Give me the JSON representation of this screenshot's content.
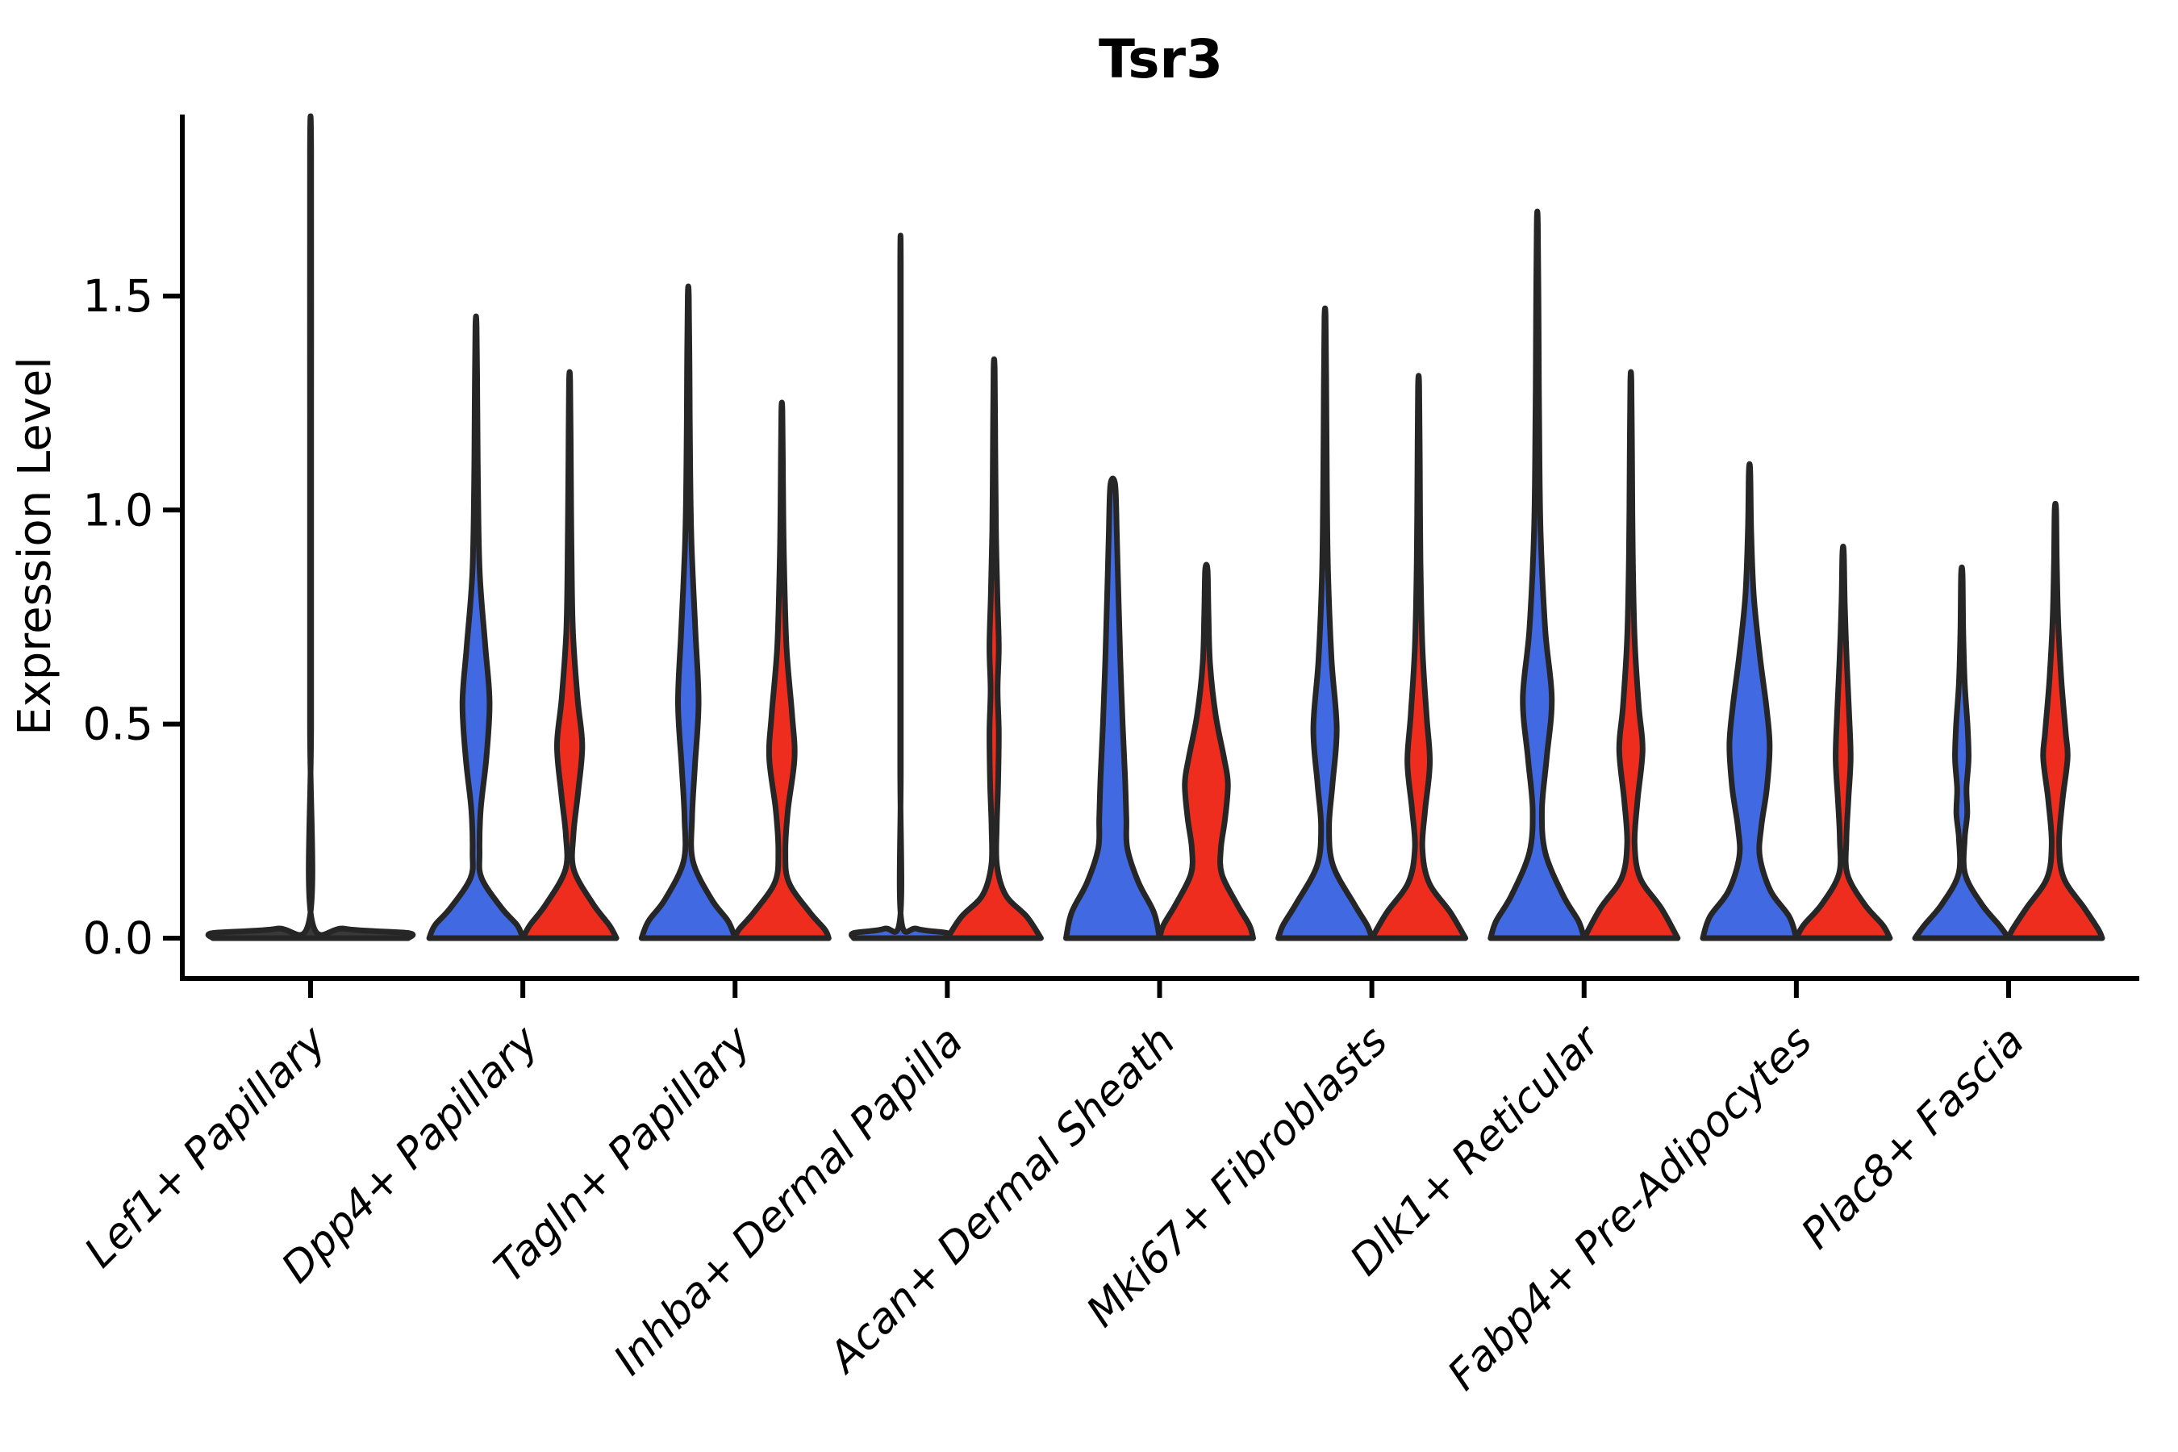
{
  "chart_data": {
    "type": "violin",
    "title": "Tsr3",
    "ylabel": "Expression Level",
    "xlabel": "",
    "ylim": [
      -0.07,
      1.95
    ],
    "yticks": [
      0.0,
      0.5,
      1.0,
      1.5
    ],
    "ytick_labels": [
      "0.0",
      "0.5",
      "1.0",
      "1.5"
    ],
    "grid": false,
    "legend": "none",
    "edge_color": "#262626",
    "group_colors": {
      "blue": "#4169e1",
      "red": "#ee2d1e",
      "single": "#3a3a3a"
    },
    "categories": [
      "Lef1+ Papillary",
      "Dpp4+ Papillary",
      "Tagln+ Papillary",
      "Inhba+ Dermal Papilla",
      "Acan+ Dermal Sheath",
      "Mki67+ Fibroblasts",
      "Dlk1+ Reticular",
      "Fabp4+ Pre-Adipocytes",
      "Plac8+ Fascia"
    ],
    "violins": [
      {
        "category": "Lef1+ Papillary",
        "layout": "single",
        "items": [
          {
            "group": "single",
            "max_expression": 1.84,
            "profile": [
              [
                1.84,
                0.006
              ],
              [
                1.2,
                0.006
              ],
              [
                0.5,
                0.006
              ],
              [
                0.05,
                0.007
              ],
              [
                0.022,
                0.35
              ],
              [
                0.012,
                1.0
              ],
              [
                0,
                1.0
              ]
            ]
          }
        ]
      },
      {
        "category": "Dpp4+ Papillary",
        "layout": "pair",
        "items": [
          {
            "group": "blue",
            "max_expression": 1.43,
            "profile": [
              [
                1.43,
                0.012
              ],
              [
                1.25,
                0.028
              ],
              [
                1.05,
                0.042
              ],
              [
                0.85,
                0.08
              ],
              [
                0.68,
                0.2
              ],
              [
                0.55,
                0.29
              ],
              [
                0.42,
                0.22
              ],
              [
                0.3,
                0.1
              ],
              [
                0.2,
                0.075
              ],
              [
                0.14,
                0.12
              ],
              [
                0.07,
                0.55
              ],
              [
                0.03,
                0.88
              ],
              [
                0,
                1.0
              ]
            ]
          },
          {
            "group": "red",
            "max_expression": 1.3,
            "profile": [
              [
                1.3,
                0.012
              ],
              [
                1.12,
                0.025
              ],
              [
                0.92,
                0.04
              ],
              [
                0.72,
                0.07
              ],
              [
                0.56,
                0.17
              ],
              [
                0.45,
                0.27
              ],
              [
                0.34,
                0.18
              ],
              [
                0.24,
                0.08
              ],
              [
                0.16,
                0.09
              ],
              [
                0.08,
                0.5
              ],
              [
                0.03,
                0.85
              ],
              [
                0,
                1.0
              ]
            ]
          }
        ]
      },
      {
        "category": "Tagln+ Papillary",
        "layout": "pair",
        "items": [
          {
            "group": "blue",
            "max_expression": 1.5,
            "profile": [
              [
                1.5,
                0.012
              ],
              [
                1.32,
                0.026
              ],
              [
                1.1,
                0.04
              ],
              [
                0.92,
                0.07
              ],
              [
                0.72,
                0.15
              ],
              [
                0.55,
                0.22
              ],
              [
                0.4,
                0.14
              ],
              [
                0.28,
                0.08
              ],
              [
                0.18,
                0.1
              ],
              [
                0.09,
                0.5
              ],
              [
                0.04,
                0.85
              ],
              [
                0,
                1.0
              ]
            ]
          },
          {
            "group": "red",
            "max_expression": 1.23,
            "profile": [
              [
                1.23,
                0.012
              ],
              [
                1.06,
                0.025
              ],
              [
                0.88,
                0.045
              ],
              [
                0.68,
                0.1
              ],
              [
                0.52,
                0.22
              ],
              [
                0.42,
                0.27
              ],
              [
                0.3,
                0.13
              ],
              [
                0.2,
                0.075
              ],
              [
                0.13,
                0.15
              ],
              [
                0.06,
                0.6
              ],
              [
                0.02,
                0.92
              ],
              [
                0,
                1.0
              ]
            ]
          }
        ]
      },
      {
        "category": "Inhba+ Dermal Papilla",
        "layout": "pair",
        "items": [
          {
            "group": "blue",
            "max_expression": 1.57,
            "profile": [
              [
                1.57,
                0.006
              ],
              [
                1.0,
                0.006
              ],
              [
                0.4,
                0.006
              ],
              [
                0.05,
                0.007
              ],
              [
                0.022,
                0.35
              ],
              [
                0.012,
                1.0
              ],
              [
                0,
                1.0
              ]
            ]
          },
          {
            "group": "red",
            "max_expression": 1.33,
            "profile": [
              [
                1.33,
                0.012
              ],
              [
                1.15,
                0.025
              ],
              [
                0.95,
                0.04
              ],
              [
                0.8,
                0.07
              ],
              [
                0.68,
                0.1
              ],
              [
                0.58,
                0.075
              ],
              [
                0.48,
                0.1
              ],
              [
                0.36,
                0.085
              ],
              [
                0.26,
                0.055
              ],
              [
                0.17,
                0.06
              ],
              [
                0.1,
                0.25
              ],
              [
                0.05,
                0.7
              ],
              [
                0,
                1.0
              ]
            ]
          }
        ]
      },
      {
        "category": "Acan+ Dermal Sheath",
        "layout": "pair",
        "items": [
          {
            "group": "blue",
            "max_expression": 1.06,
            "profile": [
              [
                1.06,
                0.05
              ],
              [
                0.95,
                0.085
              ],
              [
                0.8,
                0.12
              ],
              [
                0.65,
                0.16
              ],
              [
                0.5,
                0.21
              ],
              [
                0.38,
                0.26
              ],
              [
                0.28,
                0.29
              ],
              [
                0.21,
                0.31
              ],
              [
                0.13,
                0.55
              ],
              [
                0.06,
                0.88
              ],
              [
                0,
                1.0
              ]
            ]
          },
          {
            "group": "red",
            "max_expression": 0.86,
            "profile": [
              [
                0.86,
                0.025
              ],
              [
                0.76,
                0.045
              ],
              [
                0.64,
                0.08
              ],
              [
                0.52,
                0.2
              ],
              [
                0.42,
                0.38
              ],
              [
                0.36,
                0.46
              ],
              [
                0.28,
                0.4
              ],
              [
                0.21,
                0.31
              ],
              [
                0.15,
                0.33
              ],
              [
                0.08,
                0.65
              ],
              [
                0.03,
                0.92
              ],
              [
                0,
                1.0
              ]
            ]
          }
        ]
      },
      {
        "category": "Mki67+ Fibroblasts",
        "layout": "pair",
        "items": [
          {
            "group": "blue",
            "max_expression": 1.45,
            "profile": [
              [
                1.45,
                0.012
              ],
              [
                1.28,
                0.026
              ],
              [
                1.05,
                0.04
              ],
              [
                0.85,
                0.065
              ],
              [
                0.65,
                0.14
              ],
              [
                0.49,
                0.25
              ],
              [
                0.36,
                0.16
              ],
              [
                0.26,
                0.085
              ],
              [
                0.17,
                0.17
              ],
              [
                0.08,
                0.62
              ],
              [
                0.03,
                0.9
              ],
              [
                0,
                1.0
              ]
            ]
          },
          {
            "group": "red",
            "max_expression": 1.29,
            "profile": [
              [
                1.29,
                0.012
              ],
              [
                1.1,
                0.025
              ],
              [
                0.88,
                0.04
              ],
              [
                0.68,
                0.08
              ],
              [
                0.52,
                0.17
              ],
              [
                0.41,
                0.24
              ],
              [
                0.3,
                0.14
              ],
              [
                0.21,
                0.08
              ],
              [
                0.13,
                0.22
              ],
              [
                0.06,
                0.68
              ],
              [
                0,
                1.0
              ]
            ]
          }
        ]
      },
      {
        "category": "Dlk1+ Reticular",
        "layout": "pair",
        "items": [
          {
            "group": "blue",
            "max_expression": 1.67,
            "profile": [
              [
                1.67,
                0.012
              ],
              [
                1.45,
                0.026
              ],
              [
                1.2,
                0.04
              ],
              [
                0.95,
                0.07
              ],
              [
                0.72,
                0.17
              ],
              [
                0.56,
                0.31
              ],
              [
                0.42,
                0.2
              ],
              [
                0.3,
                0.1
              ],
              [
                0.2,
                0.17
              ],
              [
                0.1,
                0.55
              ],
              [
                0.04,
                0.88
              ],
              [
                0,
                1.0
              ]
            ]
          },
          {
            "group": "red",
            "max_expression": 1.3,
            "profile": [
              [
                1.3,
                0.012
              ],
              [
                1.12,
                0.025
              ],
              [
                0.9,
                0.04
              ],
              [
                0.7,
                0.08
              ],
              [
                0.54,
                0.17
              ],
              [
                0.44,
                0.25
              ],
              [
                0.32,
                0.14
              ],
              [
                0.22,
                0.08
              ],
              [
                0.14,
                0.2
              ],
              [
                0.07,
                0.65
              ],
              [
                0,
                1.0
              ]
            ]
          }
        ]
      },
      {
        "category": "Fabp4+ Pre-Adipocytes",
        "layout": "pair",
        "items": [
          {
            "group": "blue",
            "max_expression": 1.09,
            "profile": [
              [
                1.09,
                0.015
              ],
              [
                0.95,
                0.035
              ],
              [
                0.8,
                0.09
              ],
              [
                0.66,
                0.22
              ],
              [
                0.54,
                0.36
              ],
              [
                0.45,
                0.43
              ],
              [
                0.35,
                0.37
              ],
              [
                0.26,
                0.25
              ],
              [
                0.19,
                0.22
              ],
              [
                0.11,
                0.45
              ],
              [
                0.05,
                0.85
              ],
              [
                0,
                1.0
              ]
            ]
          },
          {
            "group": "red",
            "max_expression": 0.9,
            "profile": [
              [
                0.9,
                0.015
              ],
              [
                0.78,
                0.035
              ],
              [
                0.64,
                0.08
              ],
              [
                0.52,
                0.13
              ],
              [
                0.42,
                0.16
              ],
              [
                0.32,
                0.11
              ],
              [
                0.23,
                0.07
              ],
              [
                0.15,
                0.09
              ],
              [
                0.08,
                0.45
              ],
              [
                0.03,
                0.85
              ],
              [
                0,
                1.0
              ]
            ]
          }
        ]
      },
      {
        "category": "Plac8+ Fascia",
        "layout": "pair",
        "items": [
          {
            "group": "blue",
            "max_expression": 0.85,
            "profile": [
              [
                0.85,
                0.015
              ],
              [
                0.72,
                0.03
              ],
              [
                0.6,
                0.06
              ],
              [
                0.5,
                0.12
              ],
              [
                0.42,
                0.145
              ],
              [
                0.35,
                0.1
              ],
              [
                0.29,
                0.115
              ],
              [
                0.23,
                0.06
              ],
              [
                0.15,
                0.07
              ],
              [
                0.08,
                0.42
              ],
              [
                0.03,
                0.8
              ],
              [
                0,
                1.0
              ]
            ]
          },
          {
            "group": "red",
            "max_expression": 1.0,
            "profile": [
              [
                1.0,
                0.015
              ],
              [
                0.88,
                0.03
              ],
              [
                0.74,
                0.06
              ],
              [
                0.6,
                0.13
              ],
              [
                0.48,
                0.22
              ],
              [
                0.42,
                0.26
              ],
              [
                0.32,
                0.15
              ],
              [
                0.22,
                0.08
              ],
              [
                0.14,
                0.18
              ],
              [
                0.07,
                0.62
              ],
              [
                0.02,
                0.92
              ],
              [
                0,
                1.0
              ]
            ]
          }
        ]
      }
    ]
  }
}
